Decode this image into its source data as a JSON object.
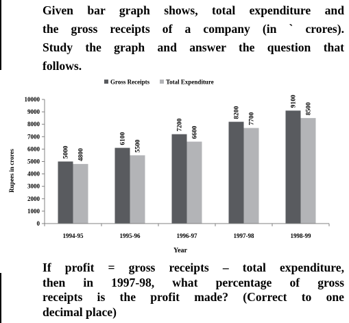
{
  "intro_lines": [
    "Given bar graph shows, total expenditure and",
    "the gross receipts of a company (in ` crores).",
    "Study the graph and answer the question that",
    "follows."
  ],
  "question_lines": [
    "If profit = gross receipts – total expenditure,",
    "then in 1997-98, what percentage of gross",
    "receipts is the profit made? (Correct to one",
    "decimal place)"
  ],
  "chart_data": {
    "type": "bar",
    "xlabel": "Year",
    "ylabel": "Rupees in crores",
    "ylim": [
      0,
      10000
    ],
    "ytick_step": 1000,
    "legend_position": "top",
    "categories": [
      "1994-95",
      "1995-96",
      "1996-97",
      "1997-98",
      "1998-99"
    ],
    "series": [
      {
        "name": "Gross Receipts",
        "color": "#595b5f",
        "values": [
          5000,
          6100,
          7200,
          8200,
          9100
        ]
      },
      {
        "name": "Total Expenditure",
        "color": "#b3b4b7",
        "values": [
          4800,
          5500,
          6600,
          7700,
          8500
        ]
      }
    ]
  }
}
